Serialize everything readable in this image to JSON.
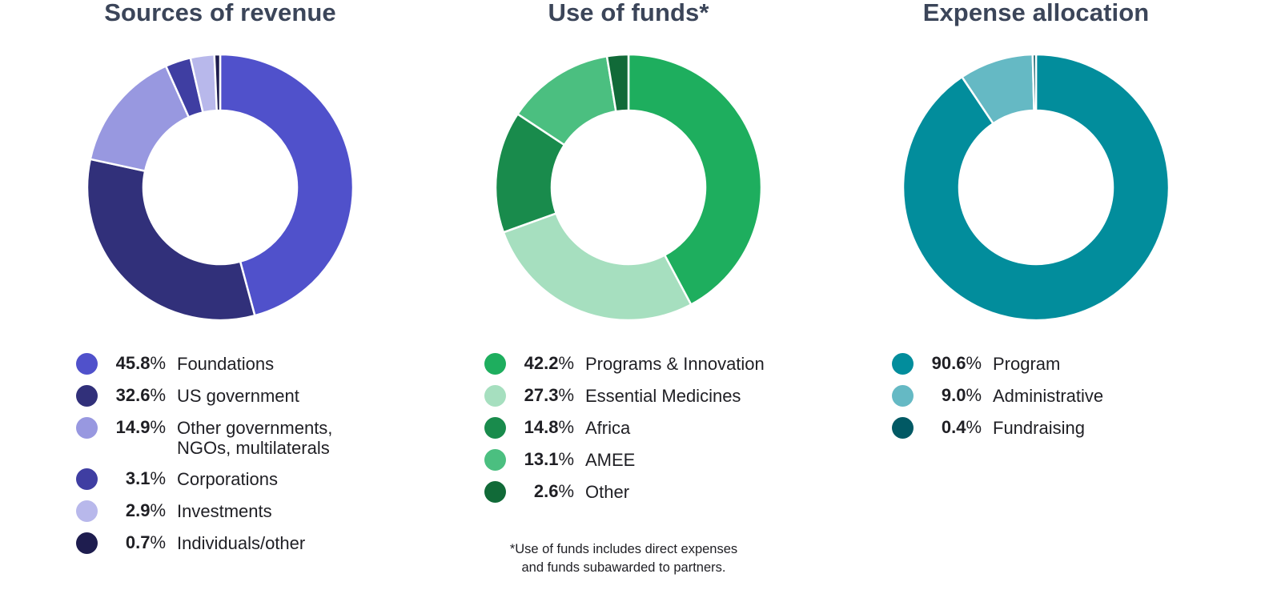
{
  "chart_data": [
    {
      "type": "pie",
      "subtype": "donut",
      "title": "Sources of revenue",
      "categories": [
        "Foundations",
        "US government",
        "Other governments, NGOs, multilaterals",
        "Corporations",
        "Investments",
        "Individuals/other"
      ],
      "values": [
        45.8,
        32.6,
        14.9,
        3.1,
        2.9,
        0.7
      ],
      "value_labels": [
        "45.8%",
        "32.6%",
        "14.9%",
        "3.1%",
        "2.9%",
        "0.7%"
      ],
      "colors": [
        "#5051cb",
        "#31307a",
        "#9898e0",
        "#3f3ea2",
        "#b8b8eb",
        "#1e1d4f"
      ],
      "legend_position": "bottom",
      "unit": "%"
    },
    {
      "type": "pie",
      "subtype": "donut",
      "title": "Use of funds*",
      "categories": [
        "Programs & Innovation",
        "Essential Medicines",
        "Africa",
        "AMEE",
        "Other"
      ],
      "values": [
        42.2,
        27.3,
        14.8,
        13.1,
        2.6
      ],
      "value_labels": [
        "42.2%",
        "27.3%",
        "14.8%",
        "13.1%",
        "2.6%"
      ],
      "colors": [
        "#1eae5e",
        "#a6dfbf",
        "#198b4c",
        "#4bbf80",
        "#116a38"
      ],
      "legend_position": "bottom",
      "unit": "%",
      "footnote": "*Use of funds includes direct expenses\nand funds subawarded to partners."
    },
    {
      "type": "pie",
      "subtype": "donut",
      "title": "Expense allocation",
      "categories": [
        "Program",
        "Administrative",
        "Fundraising"
      ],
      "values": [
        90.6,
        9.0,
        0.4
      ],
      "value_labels": [
        "90.6%",
        "9.0%",
        "0.4%"
      ],
      "colors": [
        "#028d9c",
        "#65b9c4",
        "#015964"
      ],
      "legend_position": "bottom",
      "unit": "%"
    }
  ],
  "panels": {
    "revenue": {
      "title": "Sources of revenue",
      "legend": [
        {
          "value": "45.8",
          "label": "Foundations",
          "color": "#5051cb"
        },
        {
          "value": "32.6",
          "label": "US government",
          "color": "#31307a"
        },
        {
          "value": "14.9",
          "label": "Other governments,\nNGOs, multilaterals",
          "color": "#9898e0"
        },
        {
          "value": "3.1",
          "label": "Corporations",
          "color": "#3f3ea2"
        },
        {
          "value": "2.9",
          "label": "Investments",
          "color": "#b8b8eb"
        },
        {
          "value": "0.7",
          "label": "Individuals/other",
          "color": "#1e1d4f"
        }
      ]
    },
    "funds": {
      "title": "Use of funds*",
      "legend": [
        {
          "value": "42.2",
          "label": "Programs & Innovation",
          "color": "#1eae5e"
        },
        {
          "value": "27.3",
          "label": "Essential Medicines",
          "color": "#a6dfbf"
        },
        {
          "value": "14.8",
          "label": "Africa",
          "color": "#198b4c"
        },
        {
          "value": "13.1",
          "label": "AMEE",
          "color": "#4bbf80"
        },
        {
          "value": "2.6",
          "label": "Other",
          "color": "#116a38"
        }
      ],
      "footnote": "*Use of funds includes direct expenses\nand funds subawarded to partners."
    },
    "expense": {
      "title": "Expense allocation",
      "legend": [
        {
          "value": "90.6",
          "label": "Program",
          "color": "#028d9c"
        },
        {
          "value": "9.0",
          "label": "Administrative",
          "color": "#65b9c4"
        },
        {
          "value": "0.4",
          "label": "Fundraising",
          "color": "#015964"
        }
      ]
    }
  },
  "percent_sign": "%"
}
